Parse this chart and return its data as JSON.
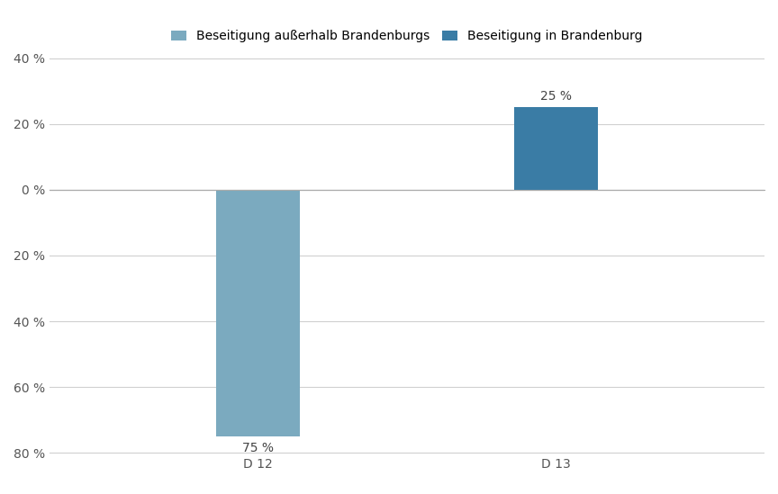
{
  "categories": [
    "D 12",
    "D 13"
  ],
  "series": [
    {
      "name": "Beseitigung außerhalb Brandenburgs",
      "values": [
        -75,
        0
      ],
      "color": "#7BAABF"
    },
    {
      "name": "Beseitigung in Brandenburg",
      "values": [
        0,
        25
      ],
      "color": "#3A7CA5"
    }
  ],
  "ylim": [
    -82,
    44
  ],
  "yticks": [
    40,
    20,
    0,
    -20,
    -40,
    -60,
    -80
  ],
  "ytick_labels": [
    "40 %",
    "20 %",
    "0 %",
    "20 %",
    "40 %",
    "60 %",
    "80 %"
  ],
  "bar_label_D12": "75 %",
  "bar_label_D13": "25 %",
  "background_color": "#ffffff",
  "grid_color": "#d0d0d0",
  "bar_width": 0.28,
  "xlim": [
    -0.7,
    1.7
  ]
}
